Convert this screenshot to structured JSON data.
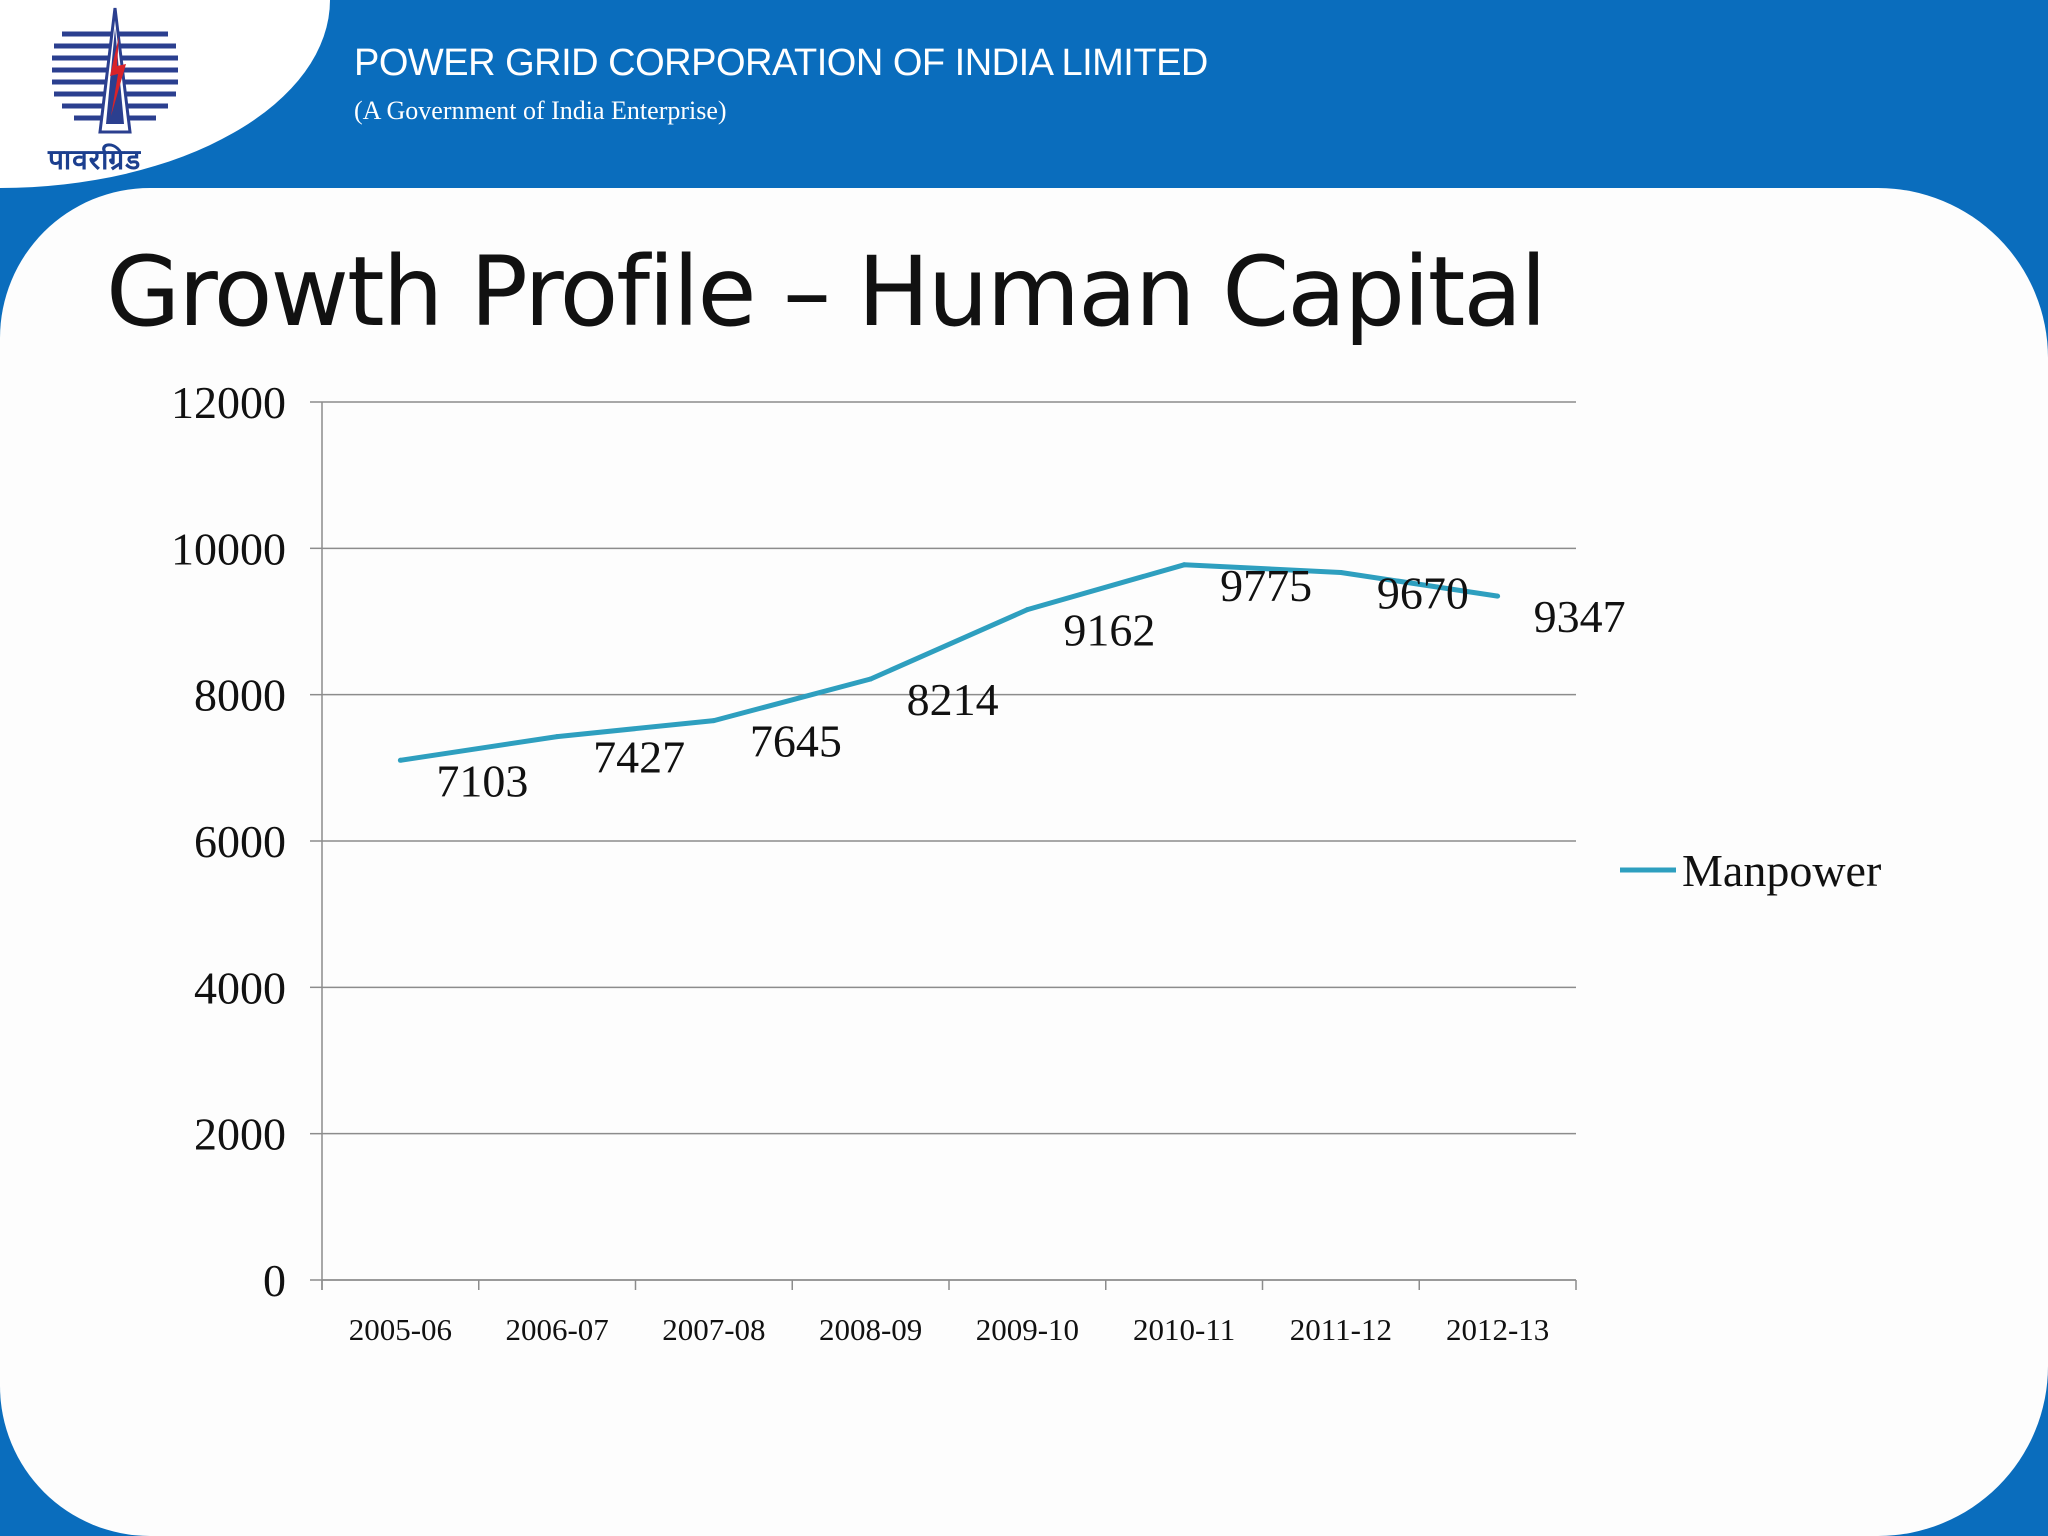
{
  "header": {
    "company_name": "POWER GRID CORPORATION OF INDIA LIMITED",
    "subtitle": "(A Government of India Enterprise)",
    "logo_text": "पावरग्रिड",
    "background_color": "#0a6dbd"
  },
  "slide": {
    "title": "Growth Profile – Human Capital"
  },
  "chart_data": {
    "type": "line",
    "categories": [
      "2005-06",
      "2006-07",
      "2007-08",
      "2008-09",
      "2009-10",
      "2010-11",
      "2011-12",
      "2012-13"
    ],
    "series": [
      {
        "name": "Manpower",
        "values": [
          7103,
          7427,
          7645,
          8214,
          9162,
          9775,
          9670,
          9347
        ],
        "color": "#2e9fbf"
      }
    ],
    "data_labels": [
      "7103",
      "7427",
      "7645",
      "8214",
      "9162",
      "9775",
      "9670",
      "9347"
    ],
    "ylim": [
      0,
      12000
    ],
    "yticks": [
      "0",
      "2000",
      "4000",
      "6000",
      "8000",
      "10000",
      "12000"
    ],
    "title": "",
    "xlabel": "",
    "ylabel": "",
    "grid": true,
    "legend_position": "right"
  }
}
